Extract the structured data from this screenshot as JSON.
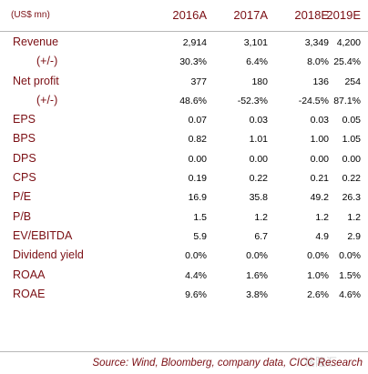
{
  "header": {
    "unit": "(US$ mn)",
    "columns": [
      "2016A",
      "2017A",
      "2018E",
      "2019E"
    ]
  },
  "rows": [
    {
      "label": "Revenue",
      "values": [
        "2,914",
        "3,101",
        "3,349",
        "4,200"
      ]
    },
    {
      "label": "(+/-)",
      "values": [
        "30.3%",
        "6.4%",
        "8.0%",
        "25.4%"
      ]
    },
    {
      "label": "Net profit",
      "values": [
        "377",
        "180",
        "136",
        "254"
      ]
    },
    {
      "label": "(+/-)",
      "values": [
        "48.6%",
        "-52.3%",
        "-24.5%",
        "87.1%"
      ]
    },
    {
      "label": "EPS",
      "values": [
        "0.07",
        "0.03",
        "0.03",
        "0.05"
      ]
    },
    {
      "label": "BPS",
      "values": [
        "0.82",
        "1.01",
        "1.00",
        "1.05"
      ]
    },
    {
      "label": "DPS",
      "values": [
        "0.00",
        "0.00",
        "0.00",
        "0.00"
      ]
    },
    {
      "label": "CPS",
      "values": [
        "0.19",
        "0.22",
        "0.21",
        "0.22"
      ]
    },
    {
      "label": "P/E",
      "values": [
        "16.9",
        "35.8",
        "49.2",
        "26.3"
      ]
    },
    {
      "label": "P/B",
      "values": [
        "1.5",
        "1.2",
        "1.2",
        "1.2"
      ]
    },
    {
      "label": "EV/EBITDA",
      "values": [
        "5.9",
        "6.7",
        "4.9",
        "2.9"
      ]
    },
    {
      "label": "Dividend yield",
      "values": [
        "0.0%",
        "0.0%",
        "0.0%",
        "0.0%"
      ]
    },
    {
      "label": "ROAA",
      "values": [
        "4.4%",
        "1.6%",
        "1.0%",
        "1.5%"
      ]
    },
    {
      "label": "ROAE",
      "values": [
        "9.6%",
        "3.8%",
        "2.6%",
        "4.6%"
      ]
    }
  ],
  "footer": {
    "source": "Source:  Wind,  Bloomberg,  company  data,  CICC  Research",
    "watermark": "格隆汇"
  }
}
